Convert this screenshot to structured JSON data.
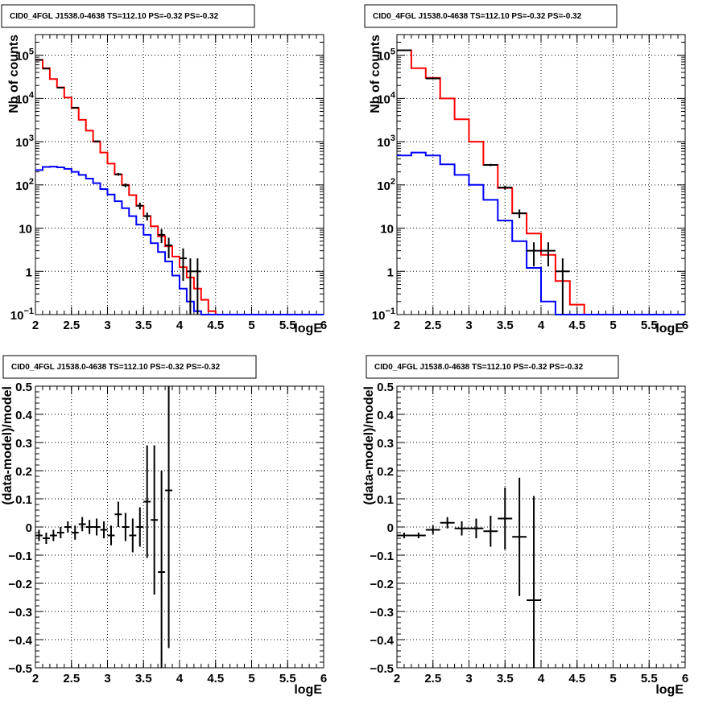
{
  "chart_data": [
    {
      "type": "histogram",
      "title": "CID0_4FGL J1538.0-4638 TS=112.10 PS=-0.32 PS=-0.32",
      "xlabel": "logE",
      "ylabel": "Nb of counts",
      "xlim": [
        2,
        6
      ],
      "ylim": [
        0.1,
        300000
      ],
      "yscale": "log",
      "grid": true,
      "x_ticks": [
        "2",
        "2.5",
        "3",
        "3.5",
        "4",
        "4.5",
        "5",
        "5.5",
        "6"
      ],
      "y_ticks": [
        {
          "v": 0.1,
          "label": "10",
          "sup": "−1"
        },
        {
          "v": 1,
          "label": "1",
          "sup": ""
        },
        {
          "v": 10,
          "label": "10",
          "sup": ""
        },
        {
          "v": 100,
          "label": "10",
          "sup": "2"
        },
        {
          "v": 1000,
          "label": "10",
          "sup": "3"
        },
        {
          "v": 10000,
          "label": "10",
          "sup": "4"
        },
        {
          "v": 100000,
          "label": "10",
          "sup": "5"
        }
      ],
      "bin_edges": [
        2.0,
        2.1,
        2.2,
        2.3,
        2.4,
        2.5,
        2.6,
        2.7,
        2.8,
        2.9,
        3.0,
        3.1,
        3.2,
        3.3,
        3.4,
        3.5,
        3.6,
        3.7,
        3.8,
        3.9,
        4.0,
        4.1,
        4.2,
        4.3,
        4.4,
        4.5,
        4.6,
        4.7,
        4.8,
        4.9,
        5.0,
        5.1,
        5.2,
        5.3,
        5.4,
        5.5,
        5.6,
        5.7,
        5.8,
        5.9,
        6.0
      ],
      "series": [
        {
          "name": "model",
          "color": "#ff0000",
          "kind": "step",
          "values": [
            78000,
            50000,
            28000,
            18000,
            10500,
            6000,
            3200,
            1800,
            1000,
            560,
            310,
            175,
            100,
            58,
            33,
            19,
            11,
            6.5,
            3.8,
            2.2,
            1.25,
            0.72,
            0.4,
            0.22,
            0.12,
            0.1,
            0.1,
            0.1,
            0.1,
            0.1,
            0.1,
            0.1,
            0.1,
            0.1,
            0.1,
            0.1,
            0.1,
            0.1,
            0.1,
            0.1
          ]
        },
        {
          "name": "component",
          "color": "#0000ff",
          "kind": "step",
          "values": [
            220,
            260,
            265,
            255,
            235,
            200,
            170,
            140,
            110,
            80,
            60,
            42,
            29,
            19,
            12,
            7,
            4.5,
            2.8,
            1.7,
            0.8,
            0.4,
            0.2,
            0.12,
            0.1,
            0.1,
            0.1,
            0.1,
            0.1,
            0.1,
            0.1,
            0.1,
            0.1,
            0.1,
            0.1,
            0.1,
            0.1,
            0.1,
            0.1,
            0.1,
            0.1
          ]
        },
        {
          "name": "data",
          "color": "#000000",
          "kind": "points",
          "points": [
            {
              "x": 2.05,
              "y": 78000,
              "lo": 77700,
              "hi": 78300
            },
            {
              "x": 2.15,
              "y": 49000,
              "lo": 48800,
              "hi": 49200
            },
            {
              "x": 2.35,
              "y": 17800,
              "lo": 17650,
              "hi": 17950
            },
            {
              "x": 2.55,
              "y": 6100,
              "lo": 6020,
              "hi": 6180
            },
            {
              "x": 2.85,
              "y": 1020,
              "lo": 990,
              "hi": 1050
            },
            {
              "x": 3.15,
              "y": 176,
              "lo": 163,
              "hi": 189
            },
            {
              "x": 3.25,
              "y": 98,
              "lo": 88,
              "hi": 108
            },
            {
              "x": 3.45,
              "y": 33,
              "lo": 27,
              "hi": 39
            },
            {
              "x": 3.55,
              "y": 19,
              "lo": 15,
              "hi": 23
            },
            {
              "x": 3.75,
              "y": 7,
              "lo": 4.5,
              "hi": 9.5
            },
            {
              "x": 3.85,
              "y": 4,
              "lo": 2,
              "hi": 6
            },
            {
              "x": 4.05,
              "y": 2,
              "lo": 0.6,
              "hi": 3.4
            },
            {
              "x": 4.15,
              "y": 1,
              "lo": 0.1,
              "hi": 2
            },
            {
              "x": 4.25,
              "y": 1,
              "lo": 0.1,
              "hi": 2
            }
          ]
        }
      ]
    },
    {
      "type": "histogram",
      "title": "CID0_4FGL J1538.0-4638 TS=112.10 PS=-0.32 PS=-0.32",
      "xlabel": "logE",
      "ylabel": "Nb of counts",
      "xlim": [
        2,
        6
      ],
      "ylim": [
        0.1,
        300000
      ],
      "yscale": "log",
      "grid": true,
      "x_ticks": [
        "2",
        "2.5",
        "3",
        "3.5",
        "4",
        "4.5",
        "5",
        "5.5",
        "6"
      ],
      "y_ticks": [
        {
          "v": 0.1,
          "label": "10",
          "sup": "−1"
        },
        {
          "v": 1,
          "label": "1",
          "sup": ""
        },
        {
          "v": 10,
          "label": "10",
          "sup": ""
        },
        {
          "v": 100,
          "label": "10",
          "sup": "2"
        },
        {
          "v": 1000,
          "label": "10",
          "sup": "3"
        },
        {
          "v": 10000,
          "label": "10",
          "sup": "4"
        },
        {
          "v": 100000,
          "label": "10",
          "sup": "5"
        }
      ],
      "bin_edges": [
        2.0,
        2.2,
        2.4,
        2.6,
        2.8,
        3.0,
        3.2,
        3.4,
        3.6,
        3.8,
        4.0,
        4.2,
        4.4,
        4.6,
        4.8,
        5.0,
        5.2,
        5.4,
        5.6,
        5.8,
        6.0
      ],
      "series": [
        {
          "name": "model",
          "color": "#ff0000",
          "kind": "step",
          "values": [
            130000,
            50000,
            30000,
            10000,
            3300,
            1000,
            290,
            85,
            22,
            7.5,
            2.4,
            0.6,
            0.17,
            0.1,
            0.1,
            0.1,
            0.1,
            0.1,
            0.1,
            0.1
          ]
        },
        {
          "name": "component",
          "color": "#0000ff",
          "kind": "step",
          "values": [
            480,
            560,
            480,
            300,
            170,
            100,
            45,
            15,
            5,
            1.2,
            0.2,
            0.1,
            0.1,
            0.1,
            0.1,
            0.1,
            0.1,
            0.1,
            0.1,
            0.1
          ]
        },
        {
          "name": "data",
          "color": "#000000",
          "kind": "points",
          "points": [
            {
              "x": 2.1,
              "y": 130000,
              "lo": 129600,
              "hi": 130400
            },
            {
              "x": 2.5,
              "y": 29000,
              "lo": 28800,
              "hi": 29200
            },
            {
              "x": 3.3,
              "y": 290,
              "lo": 273,
              "hi": 307
            },
            {
              "x": 3.5,
              "y": 87,
              "lo": 78,
              "hi": 96
            },
            {
              "x": 3.7,
              "y": 22,
              "lo": 17,
              "hi": 27
            },
            {
              "x": 3.9,
              "y": 3,
              "lo": 1.3,
              "hi": 4.7
            },
            {
              "x": 4.1,
              "y": 3,
              "lo": 1.3,
              "hi": 4.7
            },
            {
              "x": 4.3,
              "y": 1,
              "lo": 0.1,
              "hi": 2
            }
          ]
        }
      ]
    },
    {
      "type": "scatter",
      "title": "CID0_4FGL J1538.0-4638 TS=112.10 PS=-0.32 PS=-0.32",
      "xlabel": "logE",
      "ylabel": "(data-model)/model",
      "xlim": [
        2,
        6
      ],
      "ylim": [
        -0.5,
        0.5
      ],
      "yscale": "linear",
      "grid": true,
      "x_ticks": [
        "2",
        "2.5",
        "3",
        "3.5",
        "4",
        "4.5",
        "5",
        "5.5",
        "6"
      ],
      "y_ticks": [
        {
          "v": -0.5,
          "label": "−0.5"
        },
        {
          "v": -0.4,
          "label": "−0.4"
        },
        {
          "v": -0.3,
          "label": "−0.3"
        },
        {
          "v": -0.2,
          "label": "−0.2"
        },
        {
          "v": -0.1,
          "label": "−0.1"
        },
        {
          "v": 0,
          "label": "0"
        },
        {
          "v": 0.1,
          "label": "0.1"
        },
        {
          "v": 0.2,
          "label": "0.2"
        },
        {
          "v": 0.3,
          "label": "0.3"
        },
        {
          "v": 0.4,
          "label": "0.4"
        },
        {
          "v": 0.5,
          "label": "0.5"
        }
      ],
      "xerr": 0.05,
      "points": [
        {
          "x": 2.05,
          "y": -0.03,
          "lo": -0.05,
          "hi": -0.01
        },
        {
          "x": 2.15,
          "y": -0.04,
          "lo": -0.06,
          "hi": -0.02
        },
        {
          "x": 2.25,
          "y": -0.03,
          "lo": -0.05,
          "hi": -0.01
        },
        {
          "x": 2.35,
          "y": -0.02,
          "lo": -0.04,
          "hi": 0.0
        },
        {
          "x": 2.45,
          "y": 0.0,
          "lo": -0.02,
          "hi": 0.02
        },
        {
          "x": 2.55,
          "y": -0.02,
          "lo": -0.045,
          "hi": 0.005
        },
        {
          "x": 2.65,
          "y": 0.01,
          "lo": -0.015,
          "hi": 0.035
        },
        {
          "x": 2.75,
          "y": 0.0,
          "lo": -0.025,
          "hi": 0.025
        },
        {
          "x": 2.85,
          "y": 0.0,
          "lo": -0.03,
          "hi": 0.03
        },
        {
          "x": 2.95,
          "y": -0.01,
          "lo": -0.04,
          "hi": 0.02
        },
        {
          "x": 3.05,
          "y": -0.03,
          "lo": -0.065,
          "hi": 0.005
        },
        {
          "x": 3.15,
          "y": 0.045,
          "lo": 0.0,
          "hi": 0.09
        },
        {
          "x": 3.25,
          "y": 0.0,
          "lo": -0.05,
          "hi": 0.05
        },
        {
          "x": 3.35,
          "y": -0.03,
          "lo": -0.09,
          "hi": 0.03
        },
        {
          "x": 3.45,
          "y": 0.0,
          "lo": -0.07,
          "hi": 0.07
        },
        {
          "x": 3.55,
          "y": 0.09,
          "lo": -0.11,
          "hi": 0.29
        },
        {
          "x": 3.65,
          "y": 0.025,
          "lo": -0.24,
          "hi": 0.29
        },
        {
          "x": 3.75,
          "y": -0.16,
          "lo": -0.5,
          "hi": 0.2
        },
        {
          "x": 3.85,
          "y": 0.13,
          "lo": -0.43,
          "hi": 0.5
        }
      ]
    },
    {
      "type": "scatter",
      "title": "CID0_4FGL J1538.0-4638 TS=112.10 PS=-0.32 PS=-0.32",
      "xlabel": "logE",
      "ylabel": "(data-model)/model",
      "xlim": [
        2,
        6
      ],
      "ylim": [
        -0.5,
        0.5
      ],
      "yscale": "linear",
      "grid": true,
      "x_ticks": [
        "2",
        "2.5",
        "3",
        "3.5",
        "4",
        "4.5",
        "5",
        "5.5",
        "6"
      ],
      "y_ticks": [
        {
          "v": -0.5,
          "label": "−0.5"
        },
        {
          "v": -0.4,
          "label": "−0.4"
        },
        {
          "v": -0.3,
          "label": "−0.3"
        },
        {
          "v": -0.2,
          "label": "−0.2"
        },
        {
          "v": -0.1,
          "label": "−0.1"
        },
        {
          "v": 0,
          "label": "0"
        },
        {
          "v": 0.1,
          "label": "0.1"
        },
        {
          "v": 0.2,
          "label": "0.2"
        },
        {
          "v": 0.3,
          "label": "0.3"
        },
        {
          "v": 0.4,
          "label": "0.4"
        },
        {
          "v": 0.5,
          "label": "0.5"
        }
      ],
      "xerr": 0.1,
      "points": [
        {
          "x": 2.1,
          "y": -0.03,
          "lo": -0.04,
          "hi": -0.02
        },
        {
          "x": 2.3,
          "y": -0.03,
          "lo": -0.04,
          "hi": -0.02
        },
        {
          "x": 2.5,
          "y": -0.01,
          "lo": -0.025,
          "hi": 0.005
        },
        {
          "x": 2.7,
          "y": 0.015,
          "lo": -0.005,
          "hi": 0.035
        },
        {
          "x": 2.9,
          "y": -0.005,
          "lo": -0.03,
          "hi": 0.02
        },
        {
          "x": 3.1,
          "y": -0.005,
          "lo": -0.04,
          "hi": 0.03
        },
        {
          "x": 3.3,
          "y": -0.015,
          "lo": -0.07,
          "hi": 0.04
        },
        {
          "x": 3.5,
          "y": 0.03,
          "lo": -0.08,
          "hi": 0.14
        },
        {
          "x": 3.7,
          "y": -0.035,
          "lo": -0.245,
          "hi": 0.175
        },
        {
          "x": 3.9,
          "y": -0.26,
          "lo": -0.5,
          "hi": 0.11
        }
      ]
    }
  ]
}
